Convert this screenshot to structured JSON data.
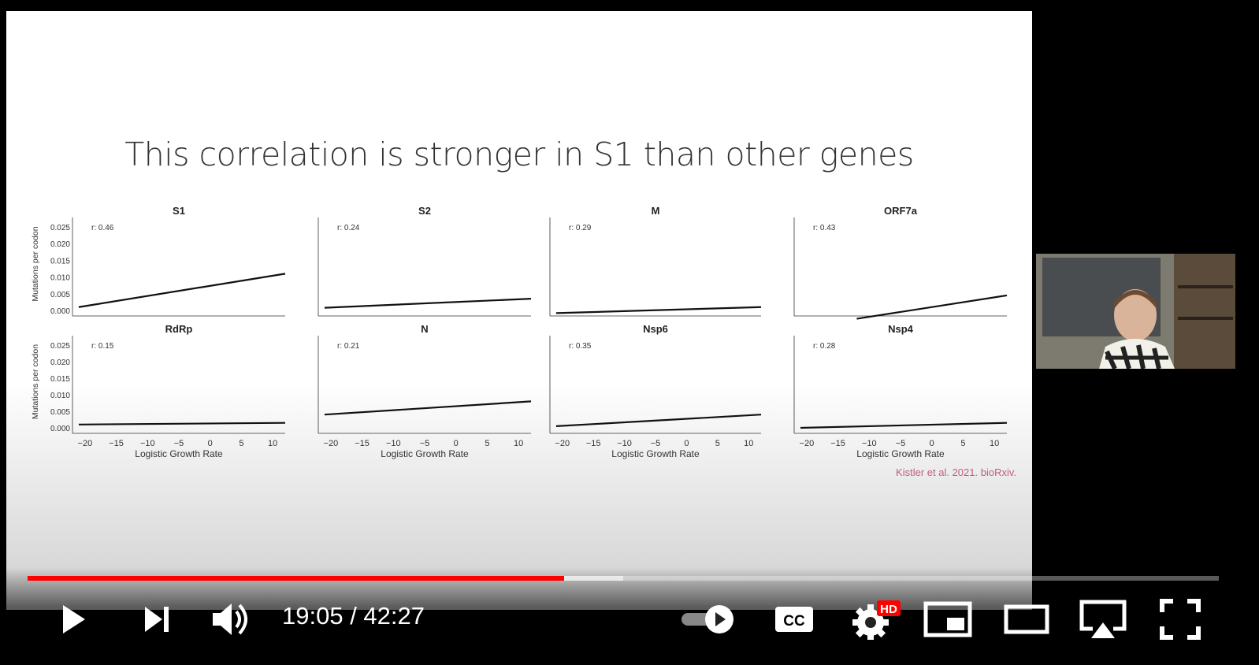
{
  "slide": {
    "title": "This correlation is stronger in S1 than other genes",
    "citation": "Kistler et al. 2021. bioRxiv."
  },
  "chart_data": [
    {
      "type": "scatter",
      "title": "S1",
      "r_label": "r: 0.46",
      "ylabel": "Mutations per codon",
      "xlabel": "",
      "ylim": [
        0,
        0.025
      ],
      "xlim": [
        -22,
        12
      ],
      "yticks": [
        "0.000",
        "0.005",
        "0.010",
        "0.015",
        "0.020",
        "0.025"
      ],
      "xticks": [],
      "trend": [
        [
          -21,
          0.001
        ],
        [
          12,
          0.011
        ]
      ]
    },
    {
      "type": "scatter",
      "title": "S2",
      "r_label": "r: 0.24",
      "ylabel": "",
      "xlabel": "",
      "ylim": [
        0,
        0.025
      ],
      "xlim": [
        -22,
        12
      ],
      "yticks": [],
      "xticks": [],
      "trend": [
        [
          -21,
          0.0008
        ],
        [
          12,
          0.0035
        ]
      ]
    },
    {
      "type": "scatter",
      "title": "M",
      "r_label": "r: 0.29",
      "ylabel": "",
      "xlabel": "",
      "ylim": [
        0,
        0.025
      ],
      "xlim": [
        -22,
        12
      ],
      "yticks": [],
      "xticks": [],
      "trend": [
        [
          -21,
          -0.0008
        ],
        [
          12,
          0.001
        ]
      ]
    },
    {
      "type": "scatter",
      "title": "ORF7a",
      "r_label": "r: 0.43",
      "ylabel": "",
      "xlabel": "",
      "ylim": [
        0,
        0.025
      ],
      "xlim": [
        -22,
        12
      ],
      "yticks": [],
      "xticks": [],
      "trend": [
        [
          -12,
          -0.0025
        ],
        [
          12,
          0.0045
        ]
      ]
    },
    {
      "type": "scatter",
      "title": "RdRp",
      "r_label": "r: 0.15",
      "ylabel": "Mutations per codon",
      "xlabel": "Logistic Growth Rate",
      "ylim": [
        0,
        0.025
      ],
      "xlim": [
        -22,
        12
      ],
      "yticks": [
        "0.000",
        "0.005",
        "0.010",
        "0.015",
        "0.020",
        "0.025"
      ],
      "xticks": [
        "−20",
        "−15",
        "−10",
        "−5",
        "0",
        "5",
        "10"
      ],
      "trend": [
        [
          -21,
          0.001
        ],
        [
          12,
          0.0015
        ]
      ]
    },
    {
      "type": "scatter",
      "title": "N",
      "r_label": "r: 0.21",
      "ylabel": "",
      "xlabel": "Logistic Growth Rate",
      "ylim": [
        0,
        0.025
      ],
      "xlim": [
        -22,
        12
      ],
      "yticks": [],
      "xticks": [
        "−20",
        "−15",
        "−10",
        "−5",
        "0",
        "5",
        "10"
      ],
      "trend": [
        [
          -21,
          0.004
        ],
        [
          12,
          0.008
        ]
      ]
    },
    {
      "type": "scatter",
      "title": "Nsp6",
      "r_label": "r: 0.35",
      "ylabel": "",
      "xlabel": "Logistic Growth Rate",
      "ylim": [
        0,
        0.025
      ],
      "xlim": [
        -22,
        12
      ],
      "yticks": [],
      "xticks": [
        "−20",
        "−15",
        "−10",
        "−5",
        "0",
        "5",
        "10"
      ],
      "trend": [
        [
          -21,
          0.0005
        ],
        [
          12,
          0.004
        ]
      ]
    },
    {
      "type": "scatter",
      "title": "Nsp4",
      "r_label": "r: 0.28",
      "ylabel": "",
      "xlabel": "Logistic Growth Rate",
      "ylim": [
        0,
        0.025
      ],
      "xlim": [
        -22,
        12
      ],
      "yticks": [],
      "xticks": [
        "−20",
        "−15",
        "−10",
        "−5",
        "0",
        "5",
        "10"
      ],
      "trend": [
        [
          -21,
          0
        ],
        [
          12,
          0.0015
        ]
      ]
    }
  ],
  "player": {
    "time": "19:05 / 42:27",
    "progress_fraction": 0.4503,
    "loaded_fraction": 0.5,
    "quality_badge": "HD",
    "colors": {
      "played": "#ff0000",
      "icon": "#ffffff",
      "badge": "#f00"
    },
    "icons": [
      "play-icon",
      "next-icon",
      "volume-icon",
      "autoplay-toggle",
      "cc-icon",
      "settings-icon",
      "miniplayer-icon",
      "theater-icon",
      "airplay-icon",
      "fullscreen-icon"
    ]
  }
}
